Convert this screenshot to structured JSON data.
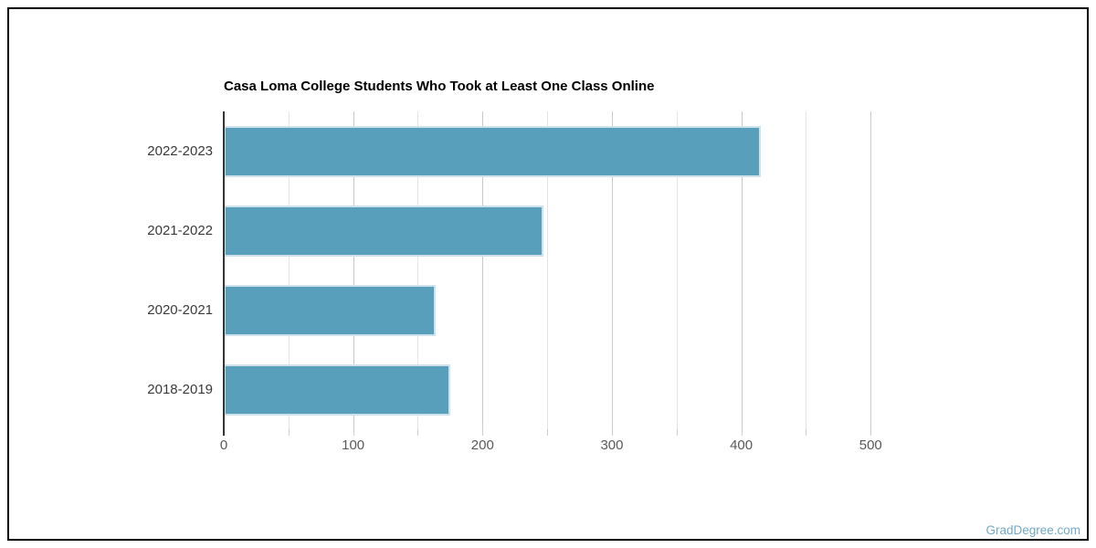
{
  "chart_data": {
    "type": "bar",
    "orientation": "horizontal",
    "title": "Casa Loma College Students Who Took at Least One Class Online",
    "categories": [
      "2022-2023",
      "2021-2022",
      "2020-2021",
      "2018-2019"
    ],
    "values": [
      415,
      247,
      164,
      175
    ],
    "xlabel": "",
    "ylabel": "",
    "xlim": [
      0,
      533
    ],
    "x_tick_labels": [
      "0",
      "100",
      "200",
      "300",
      "400",
      "500"
    ],
    "x_ticks_major": [
      0,
      100,
      200,
      300,
      400,
      500
    ],
    "x_tick_minor_step": 50,
    "x_tick_max": 500,
    "grid": true,
    "legend_position": "none"
  },
  "colors": {
    "bar": "#579fbb",
    "bar_border": "#cfe1ea",
    "grid_major": "#c9c9c9",
    "grid_minor": "#e4e4e4",
    "axis_line": "#333333",
    "tick_mark": "#cccccc",
    "tick_label": "#58595b",
    "category_label": "#3a3a3a",
    "title": "#000000",
    "frame_border": "#000000",
    "watermark": "#70aac9"
  },
  "watermark": {
    "text": "GradDegree.com"
  }
}
